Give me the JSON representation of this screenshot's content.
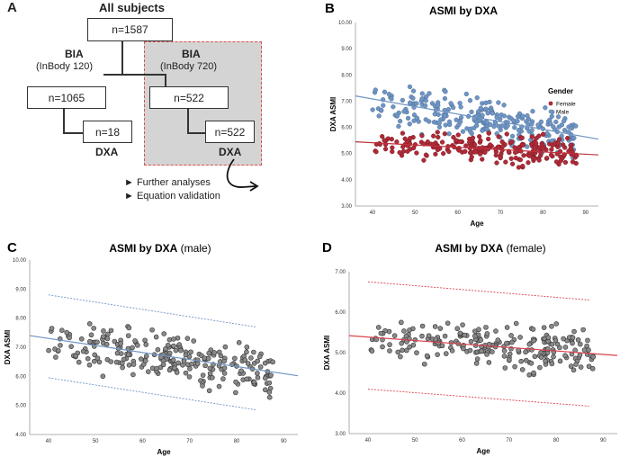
{
  "panel_a": {
    "letter": "A",
    "title": "All subjects",
    "n_all": "n=1587",
    "bia1_title": "BIA",
    "bia1_sub": "(InBody 120)",
    "bia2_title": "BIA",
    "bia2_sub": "(InBody 720)",
    "n_bia1": "n=1065",
    "n_bia2": "n=522",
    "n_dxa1": "n=18",
    "n_dxa2": "n=522",
    "dxa1": "DXA",
    "dxa2": "DXA",
    "bullet1": "► Further analyses",
    "bullet2": "► Equation validation"
  },
  "chart_data": [
    {
      "panel": "B",
      "type": "scatter",
      "title": "ASMI by DXA",
      "title_suffix": "",
      "xlabel": "Age",
      "ylabel": "DXA ASMI",
      "xlim": [
        36,
        93
      ],
      "ylim": [
        3.0,
        10.0
      ],
      "xticks": [
        "40",
        "50",
        "60",
        "70",
        "80",
        "90"
      ],
      "yticks": [
        "3.00",
        "4.00",
        "5.00",
        "6.00",
        "7.00",
        "8.00",
        "9.00",
        "10.00"
      ],
      "legend_title": "Gender",
      "legend": [
        "Female",
        "Male"
      ],
      "colors": {
        "Female": "#b02a37",
        "Male": "#6f95c4"
      },
      "series": [
        {
          "name": "Male",
          "fit": {
            "x": [
              36,
              93
            ],
            "y": [
              7.2,
              5.55
            ]
          },
          "ci": null
        },
        {
          "name": "Female",
          "fit": {
            "x": [
              36,
              93
            ],
            "y": [
              5.45,
              4.95
            ]
          },
          "ci": null
        }
      ]
    },
    {
      "panel": "C",
      "type": "scatter",
      "title": "ASMI by DXA",
      "title_suffix": "(male)",
      "xlabel": "Age",
      "ylabel": "DXA ASMI",
      "xlim": [
        36,
        93
      ],
      "ylim": [
        4.0,
        10.0
      ],
      "xticks": [
        "40",
        "50",
        "60",
        "70",
        "80",
        "90"
      ],
      "yticks": [
        "4.00",
        "5.00",
        "6.00",
        "7.00",
        "8.00",
        "9.00",
        "10.00"
      ],
      "colors": {
        "fit": "#6f95c4",
        "points": "#8a8a8a"
      },
      "series": [
        {
          "name": "Male",
          "fit": {
            "x": [
              36,
              93
            ],
            "y": [
              7.4,
              6.02
            ]
          },
          "ci": {
            "x": [
              40,
              84
            ],
            "upper": [
              8.8,
              7.7
            ],
            "lower": [
              5.95,
              4.85
            ]
          }
        }
      ]
    },
    {
      "panel": "D",
      "type": "scatter",
      "title": "ASMI by DXA",
      "title_suffix": "(female)",
      "xlabel": "Age",
      "ylabel": "DXA ASMI",
      "xlim": [
        36,
        93
      ],
      "ylim": [
        3.0,
        7.0
      ],
      "xticks": [
        "40",
        "50",
        "60",
        "70",
        "80",
        "90"
      ],
      "yticks": [
        "3.00",
        "4.00",
        "5.00",
        "6.00",
        "7.00"
      ],
      "colors": {
        "fit": "#d9434e",
        "points": "#8a8a8a"
      },
      "series": [
        {
          "name": "Female",
          "fit": {
            "x": [
              36,
              93
            ],
            "y": [
              5.42,
              4.93
            ]
          },
          "ci": {
            "x": [
              40,
              87
            ],
            "upper": [
              6.75,
              6.3
            ],
            "lower": [
              4.1,
              3.68
            ]
          }
        }
      ]
    }
  ]
}
